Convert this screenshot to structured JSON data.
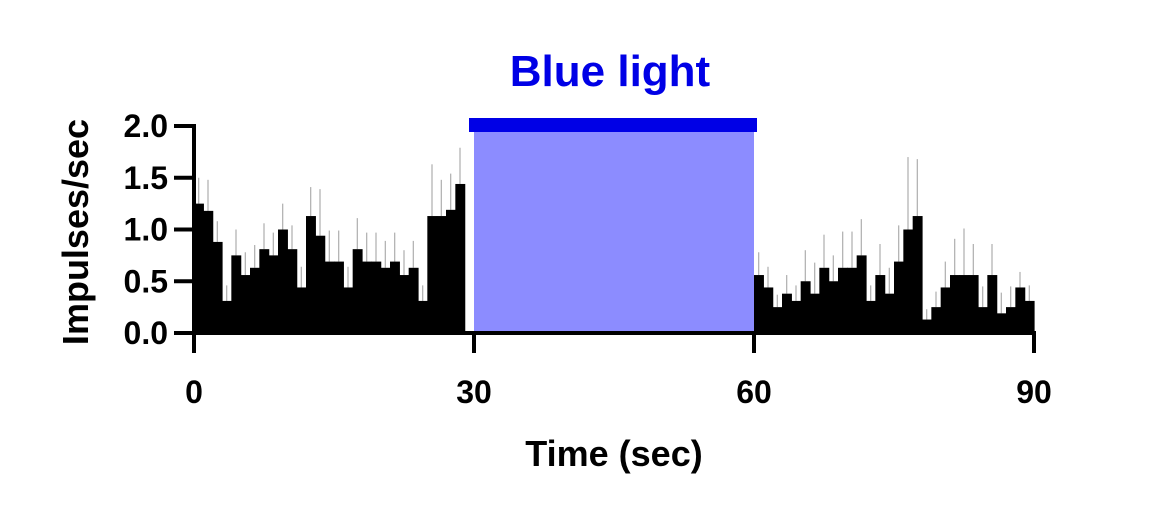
{
  "chart_data": {
    "type": "bar",
    "title": "",
    "xlabel": "Time (sec)",
    "ylabel": "Impulses/sec",
    "xlim": [
      0,
      90
    ],
    "ylim": [
      0,
      2.0
    ],
    "x_ticks": [
      "0",
      "30",
      "60",
      "90"
    ],
    "x_tick_values": [
      0,
      30,
      60,
      90
    ],
    "y_ticks": [
      "0.0",
      "0.5",
      "1.0",
      "1.5",
      "2.0"
    ],
    "y_tick_values": [
      0,
      0.5,
      1.0,
      1.5,
      2.0
    ],
    "bin_width_sec": 1,
    "series": [
      {
        "values": [
          1.25,
          1.18,
          0.88,
          0.31,
          0.75,
          0.56,
          0.63,
          0.81,
          0.75,
          1.0,
          0.81,
          0.44,
          1.13,
          0.94,
          0.69,
          0.69,
          0.44,
          0.81,
          0.69,
          0.69,
          0.63,
          0.69,
          0.56,
          0.63,
          0.31,
          1.13,
          1.13,
          1.19,
          1.44,
          0,
          0,
          0,
          0,
          0,
          0,
          0,
          0,
          0,
          0,
          0,
          0,
          0,
          0,
          0,
          0,
          0,
          0,
          0,
          0,
          0,
          0,
          0,
          0,
          0,
          0,
          0,
          0,
          0,
          0,
          0,
          0.56,
          0.44,
          0.25,
          0.38,
          0.31,
          0.5,
          0.38,
          0.63,
          0.5,
          0.63,
          0.63,
          0.75,
          0.31,
          0.56,
          0.38,
          0.69,
          1.0,
          1.13,
          0.13,
          0.25,
          0.44,
          0.56,
          0.56,
          0.56,
          0.25,
          0.56,
          0.19,
          0.25,
          0.44,
          0.31
        ],
        "error": [
          0.25,
          0.3,
          0.2,
          0.15,
          0.25,
          0.22,
          0.22,
          0.25,
          0.22,
          0.25,
          0.23,
          0.2,
          0.28,
          0.45,
          0.3,
          0.3,
          0.2,
          0.3,
          0.28,
          0.28,
          0.26,
          0.28,
          0.24,
          0.26,
          0.15,
          0.5,
          0.35,
          0.35,
          0.35,
          0,
          0,
          0,
          0,
          0,
          0,
          0,
          0,
          0,
          0,
          0,
          0,
          0,
          0,
          0,
          0,
          0,
          0,
          0,
          0,
          0,
          0,
          0,
          0,
          0,
          0,
          0,
          0,
          0,
          0,
          0,
          0.22,
          0.2,
          0.12,
          0.18,
          0.15,
          0.3,
          0.3,
          0.32,
          0.25,
          0.35,
          0.35,
          0.35,
          0.15,
          0.3,
          0.25,
          0.35,
          0.7,
          0.55,
          0.1,
          0.15,
          0.25,
          0.35,
          0.45,
          0.3,
          0.2,
          0.3,
          0.2,
          0.2,
          0.15,
          0.15
        ]
      }
    ],
    "stimulus": {
      "label": "Blue light",
      "start": 30,
      "end": 60,
      "bar_color": "#0000e6",
      "fill_color": "#8c8cff",
      "text_color": "#0000e6"
    },
    "bar_color": "#000000",
    "error_color": "#b4b4b4",
    "grid": false,
    "legend": "none"
  }
}
